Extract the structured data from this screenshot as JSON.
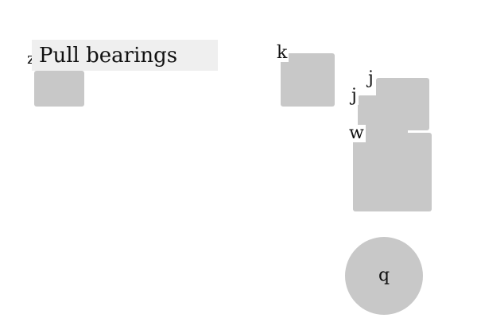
{
  "labels": {
    "z": "z",
    "k": "k",
    "j1": "j",
    "j2": "j",
    "w": "w",
    "q": "q"
  },
  "tooltip": {
    "text": "Pull bearings"
  },
  "colors": {
    "object_fill": "#c8c8c8",
    "tooltip_bg": "#efefef",
    "background": "#ffffff"
  }
}
